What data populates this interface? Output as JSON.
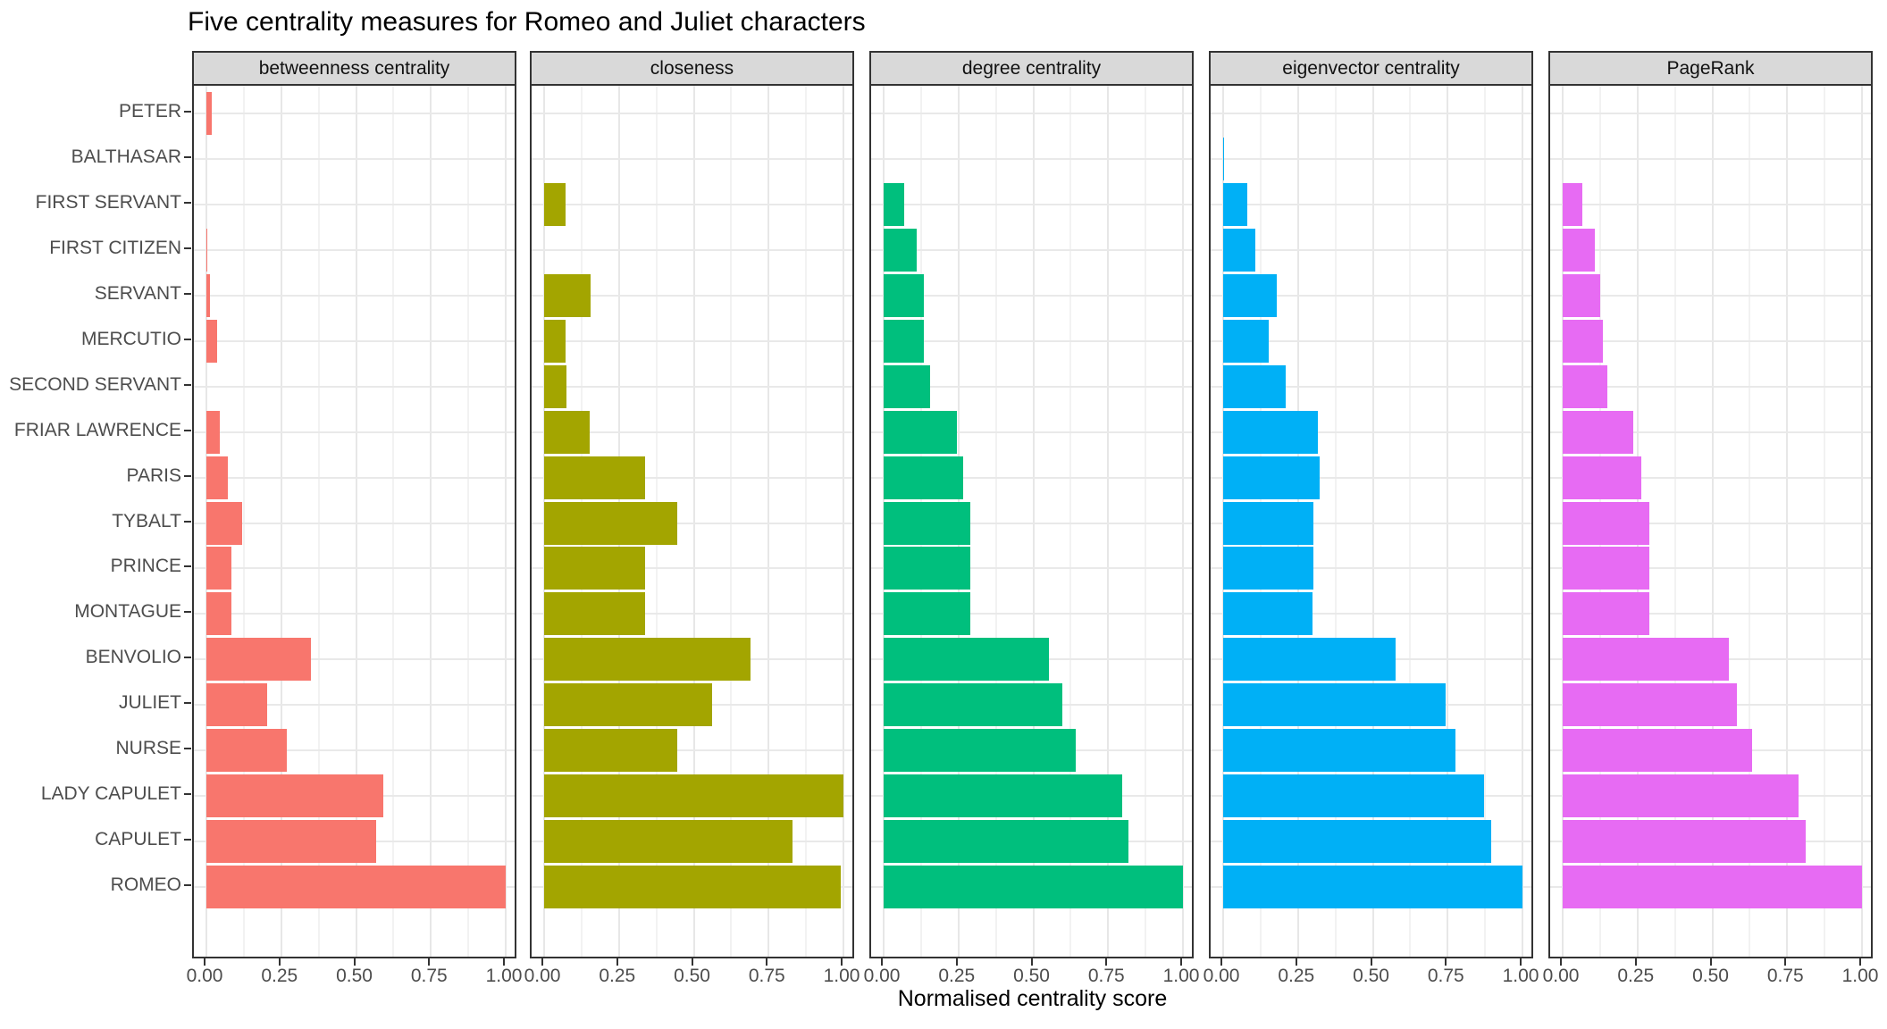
{
  "title": "Five centrality measures for Romeo and Juliet characters",
  "x_axis_title": "Normalised centrality score",
  "colors": {
    "panel_border": "#333333",
    "strip_background": "#D9D9D9",
    "grid_major": "#E7E7E7",
    "grid_minor": "#F2F2F2",
    "axis_text": "#4D4D4D",
    "title_text": "#000000"
  },
  "chart_data": {
    "type": "bar",
    "orientation": "horizontal",
    "title": "Five centrality measures for Romeo and Juliet characters",
    "xlabel": "Normalised centrality score",
    "xlim": [
      0,
      1
    ],
    "x_tick_labels": [
      "0.00",
      "0.25",
      "0.50",
      "0.75",
      "1.00"
    ],
    "x_ticks": [
      0,
      0.25,
      0.5,
      0.75,
      1.0
    ],
    "minor_grid_step": 0.125,
    "grid": true,
    "legend_position": "none",
    "categories_top_to_bottom": [
      "PETER",
      "BALTHASAR",
      "FIRST SERVANT",
      "FIRST CITIZEN",
      "SERVANT",
      "MERCUTIO",
      "SECOND SERVANT",
      "FRIAR LAWRENCE",
      "PARIS",
      "TYBALT",
      "PRINCE",
      "MONTAGUE",
      "BENVOLIO",
      "JULIET",
      "NURSE",
      "LADY CAPULET",
      "CAPULET",
      "ROMEO"
    ],
    "series": [
      {
        "name": "betweenness centrality",
        "color": "#F8766D",
        "values": [
          0.017,
          0,
          0,
          0.004,
          0.011,
          0.035,
          0,
          0.045,
          0.071,
          0.119,
          0.083,
          0.083,
          0.348,
          0.204,
          0.27,
          0.59,
          0.567,
          1.0
        ]
      },
      {
        "name": "closeness",
        "color": "#A3A500",
        "values": [
          0,
          0,
          0.073,
          0,
          0.155,
          0.073,
          0.075,
          0.153,
          0.338,
          0.445,
          0.338,
          0.338,
          0.69,
          0.562,
          0.445,
          1.0,
          0.83,
          0.99
        ]
      },
      {
        "name": "degree centrality",
        "color": "#00BF7D",
        "values": [
          0,
          0,
          0.07,
          0.111,
          0.134,
          0.134,
          0.156,
          0.245,
          0.267,
          0.291,
          0.291,
          0.291,
          0.553,
          0.598,
          0.643,
          0.798,
          0.817,
          1.0
        ]
      },
      {
        "name": "eigenvector centrality",
        "color": "#00B0F6",
        "values": [
          0,
          0.004,
          0.081,
          0.106,
          0.178,
          0.153,
          0.21,
          0.316,
          0.321,
          0.3,
          0.3,
          0.298,
          0.577,
          0.744,
          0.775,
          0.872,
          0.895,
          1.0
        ]
      },
      {
        "name": "PageRank",
        "color": "#E76BF3",
        "values": [
          0,
          0,
          0.066,
          0.107,
          0.125,
          0.133,
          0.15,
          0.237,
          0.264,
          0.289,
          0.289,
          0.289,
          0.556,
          0.583,
          0.634,
          0.789,
          0.813,
          1.0
        ]
      }
    ]
  }
}
